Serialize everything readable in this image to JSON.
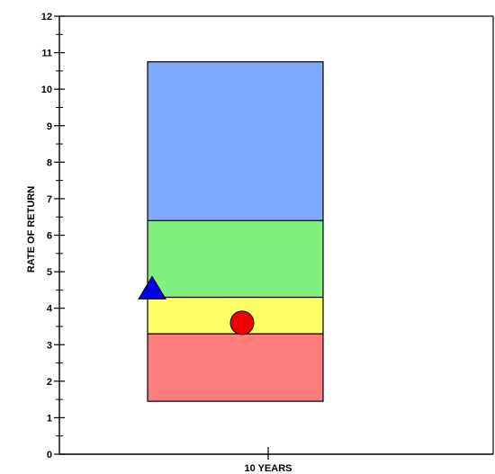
{
  "chart_data": {
    "type": "floating-bar",
    "title": "",
    "ylabel": "RATE OF RETURN",
    "xlabel": "",
    "categories": [
      "10 YEARS"
    ],
    "ylim": [
      0,
      12
    ],
    "yticks": [
      "0",
      "1",
      "2",
      "3",
      "4",
      "5",
      "6",
      "7",
      "8",
      "9",
      "10",
      "11",
      "12"
    ],
    "grid": false,
    "bands": [
      {
        "name": "",
        "from": 1.45,
        "to": 3.3,
        "color": "#ff7c7c"
      },
      {
        "name": "",
        "from": 3.3,
        "to": 4.3,
        "color": "#ffff66"
      },
      {
        "name": "",
        "from": 4.3,
        "to": 6.4,
        "color": "#80f080"
      },
      {
        "name": "",
        "from": 6.4,
        "to": 10.75,
        "color": "#80aaff"
      }
    ],
    "markers": [
      {
        "shape": "triangle",
        "value": 4.55,
        "color": "#0000ee",
        "placement": "left-edge"
      },
      {
        "shape": "circle",
        "value": 3.6,
        "color": "#ee0000",
        "placement": "center"
      }
    ]
  }
}
